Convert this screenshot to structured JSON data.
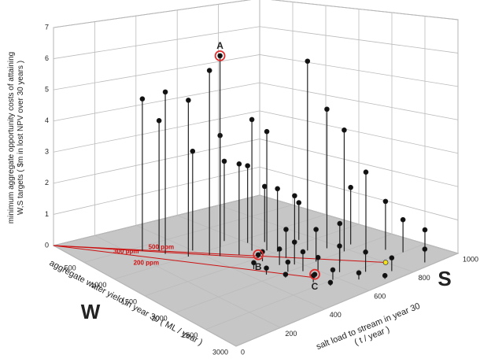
{
  "chart_data": {
    "type": "scatter3d",
    "z_label": [
      "minimum aggregate opportunity costs of attaining",
      "W,S targets ( $m in lost NPV over 30 years )"
    ],
    "x_label": "aggregate water yield in year 30 ( ML / year )",
    "y_label": [
      "salt load to stream in year 30",
      "( t / year )"
    ],
    "x_axis_letter": "W",
    "y_axis_letter": "S",
    "xlim": [
      0,
      3000
    ],
    "xticks": [
      500,
      1000,
      1500,
      2000,
      2500,
      3000
    ],
    "ylim": [
      0,
      1000
    ],
    "yticks": [
      0,
      200,
      400,
      600,
      800,
      1000
    ],
    "zlim": [
      0,
      7
    ],
    "zticks": [
      0,
      1,
      2,
      3,
      4,
      5,
      6,
      7
    ],
    "grid": true,
    "series": [
      {
        "color": "#111111",
        "x": [
          600,
          800,
          1000,
          1100,
          900,
          700,
          1000,
          1300,
          1300,
          1400,
          900,
          1100,
          1500,
          1200,
          1700,
          1800,
          2000,
          2200,
          1900,
          1500,
          1400,
          2300,
          2500,
          2700,
          2200,
          2000,
          1700,
          1900,
          2100,
          2400,
          2600,
          2800,
          1600,
          1800,
          2000,
          2200,
          2500,
          2700,
          2900,
          2900,
          1700,
          1900,
          2100,
          2400,
          2600
        ],
        "y": [
          250,
          300,
          350,
          420,
          400,
          300,
          500,
          500,
          560,
          600,
          550,
          600,
          620,
          650,
          700,
          760,
          780,
          820,
          840,
          700,
          750,
          880,
          900,
          940,
          700,
          650,
          600,
          580,
          560,
          640,
          700,
          760,
          520,
          540,
          520,
          600,
          580,
          640,
          700,
          880,
          450,
          450,
          480,
          520,
          540
        ],
        "z": [
          4.9,
          5.2,
          5.0,
          5.9,
          3.2,
          4.2,
          3.6,
          2.9,
          4.2,
          3.8,
          2.6,
          2.5,
          2.0,
          1.8,
          6.0,
          4.4,
          3.8,
          2.5,
          1.8,
          1.6,
          1.2,
          1.5,
          1.0,
          0.7,
          1.2,
          1.0,
          0.9,
          0.7,
          0.6,
          0.8,
          0.6,
          0.4,
          0.3,
          0.5,
          0.3,
          0.4,
          0.3,
          0.2,
          0.1,
          0.4,
          0.2,
          0.2,
          0.1,
          0.2,
          0.1
        ]
      },
      {
        "color": "#f0e020",
        "x": [
          2570
        ],
        "y": [
          800
        ],
        "z": [
          0
        ]
      }
    ],
    "highlights": [
      {
        "label": "A",
        "x": 1200,
        "y": 440,
        "z": 6.4
      },
      {
        "label": "B",
        "x": 1500,
        "y": 530,
        "z": 0.1
      },
      {
        "label": "C",
        "x": 2320,
        "y": 550,
        "z": 0.1
      }
    ],
    "constraints": [
      {
        "label": "500 ppm",
        "x": 2570,
        "y": 800
      },
      {
        "label": "300 ppm",
        "x": 1500,
        "y": 530
      },
      {
        "label": "200 ppm",
        "x": 2320,
        "y": 550
      }
    ],
    "constraint_color": "#cc1111",
    "highlight_color": "#e03030"
  }
}
